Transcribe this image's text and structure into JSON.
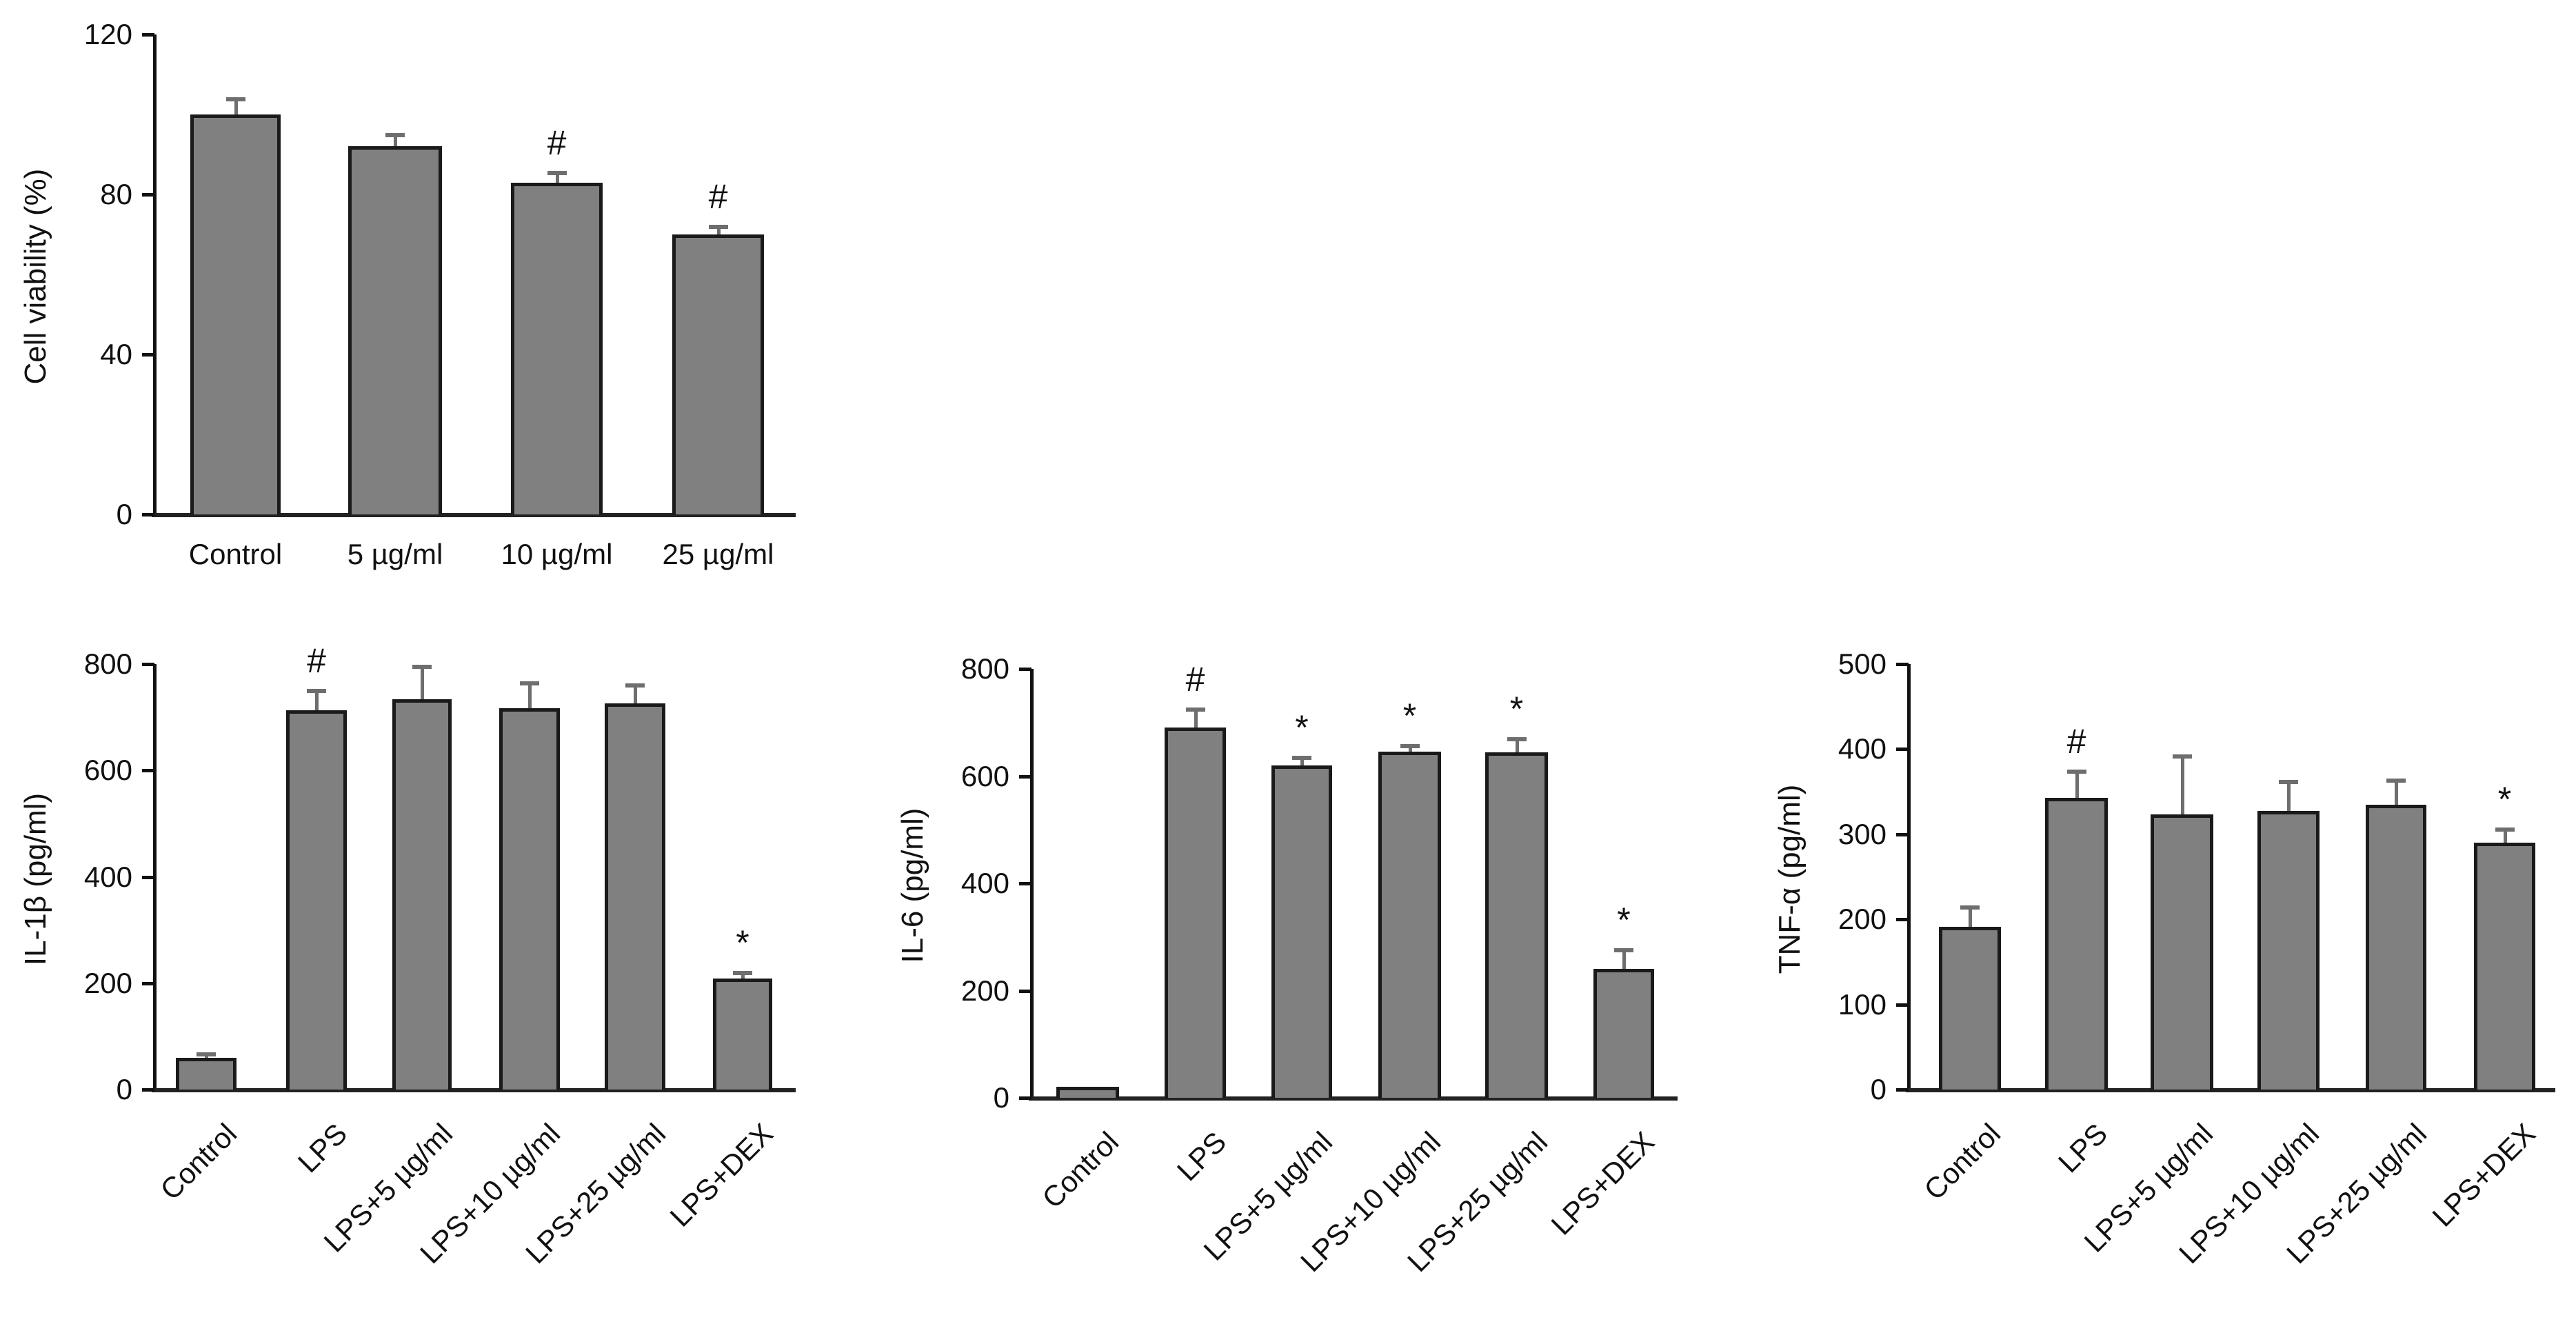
{
  "figure": {
    "panels": [
      "cell-viability",
      "il-1b",
      "il-6",
      "tnf-a"
    ]
  },
  "chart_data": [
    {
      "id": "cell-viability",
      "type": "bar",
      "title": "",
      "xlabel": "",
      "ylabel": "Cell viability (%)",
      "ylim": [
        0,
        120
      ],
      "yticks": [
        0,
        40,
        80,
        120
      ],
      "grid": false,
      "categories": [
        "Control",
        "5 µg/ml",
        "10 µg/ml",
        "25 µg/ml"
      ],
      "values": [
        100,
        92,
        83,
        70
      ],
      "error_upper": [
        104,
        95,
        85.5,
        72
      ],
      "annotations": [
        "",
        "",
        "#",
        "#"
      ],
      "label_rotation": 0,
      "layout": {
        "axis_x": 222,
        "y_top": 50,
        "y_zero": 746,
        "x_end": 1156,
        "bars": [
          [
            276,
            407
          ],
          [
            505,
            641
          ],
          [
            741,
            874
          ],
          [
            975,
            1108
          ]
        ],
        "label_y": 780
      }
    },
    {
      "id": "il-1b",
      "type": "bar",
      "title": "",
      "xlabel": "",
      "ylabel": "IL-1β (pg/ml)",
      "ylim": [
        0,
        800
      ],
      "yticks": [
        0,
        200,
        400,
        600,
        800
      ],
      "grid": false,
      "categories": [
        "Control",
        "LPS",
        "LPS+5 µg/ml",
        "LPS+10 µg/ml",
        "LPS+25 µg/ml",
        "LPS+DEX"
      ],
      "values": [
        59,
        713,
        734,
        717,
        726,
        209
      ],
      "error_upper": [
        67,
        751,
        796,
        765,
        761,
        221
      ],
      "annotations": [
        "",
        "#",
        "",
        "",
        "",
        "*"
      ],
      "label_rotation": -45,
      "layout": {
        "axis_x": 222,
        "y_top": 963,
        "y_zero": 1580,
        "x_end": 1156,
        "bars": [
          [
            255,
            343
          ],
          [
            415,
            503
          ],
          [
            569,
            655
          ],
          [
            724,
            812
          ],
          [
            877,
            965
          ],
          [
            1034,
            1120
          ]
        ],
        "label_y": 1610
      }
    },
    {
      "id": "il-6",
      "type": "bar",
      "title": "",
      "xlabel": "",
      "ylabel": "IL-6 (pg/ml)",
      "ylim": [
        0,
        800
      ],
      "yticks": [
        0,
        200,
        400,
        600,
        800
      ],
      "grid": false,
      "categories": [
        "Control",
        "LPS",
        "LPS+5 µg/ml",
        "LPS+10 µg/ml",
        "LPS+25 µg/ml",
        "LPS+DEX"
      ],
      "values": [
        21,
        691,
        620,
        646,
        645,
        241
      ],
      "error_upper": [
        22,
        725,
        635,
        657,
        670,
        276
      ],
      "annotations": [
        "",
        "#",
        "*",
        "*",
        "*",
        "*"
      ],
      "label_rotation": -45,
      "layout": {
        "axis_x": 1494,
        "y_top": 970,
        "y_zero": 1592,
        "x_end": 2435,
        "bars": [
          [
            1532,
            1623
          ],
          [
            1689,
            1778
          ],
          [
            1844,
            1932
          ],
          [
            1999,
            2090
          ],
          [
            2154,
            2245
          ],
          [
            2311,
            2399
          ]
        ],
        "label_y": 1622
      }
    },
    {
      "id": "tnf-a",
      "type": "bar",
      "title": "",
      "xlabel": "",
      "ylabel": "TNF-α (pg/ml)",
      "ylim": [
        0,
        500
      ],
      "yticks": [
        0,
        100,
        200,
        300,
        400,
        500
      ],
      "grid": false,
      "categories": [
        "Control",
        "LPS",
        "LPS+5 µg/ml",
        "LPS+10 µg/ml",
        "LPS+25 µg/ml",
        "LPS+DEX"
      ],
      "values": [
        191,
        343,
        323,
        327,
        335,
        290
      ],
      "error_upper": [
        215,
        374,
        392,
        362,
        364,
        306
      ],
      "annotations": [
        "",
        "#",
        "",
        "",
        "",
        "*"
      ],
      "label_rotation": -45,
      "layout": {
        "axis_x": 2766,
        "y_top": 963,
        "y_zero": 1580,
        "x_end": 3708,
        "bars": [
          [
            2812,
            2902
          ],
          [
            2966,
            3057
          ],
          [
            3119,
            3210
          ],
          [
            3274,
            3364
          ],
          [
            3431,
            3519
          ],
          [
            3588,
            3677
          ]
        ],
        "label_y": 1610
      }
    }
  ],
  "colors": {
    "bar_fill": "#808080",
    "bar_outline": "#1a1a1a",
    "error_bar": "#6e6e6e",
    "axis": "#111111",
    "background": "#ffffff"
  }
}
